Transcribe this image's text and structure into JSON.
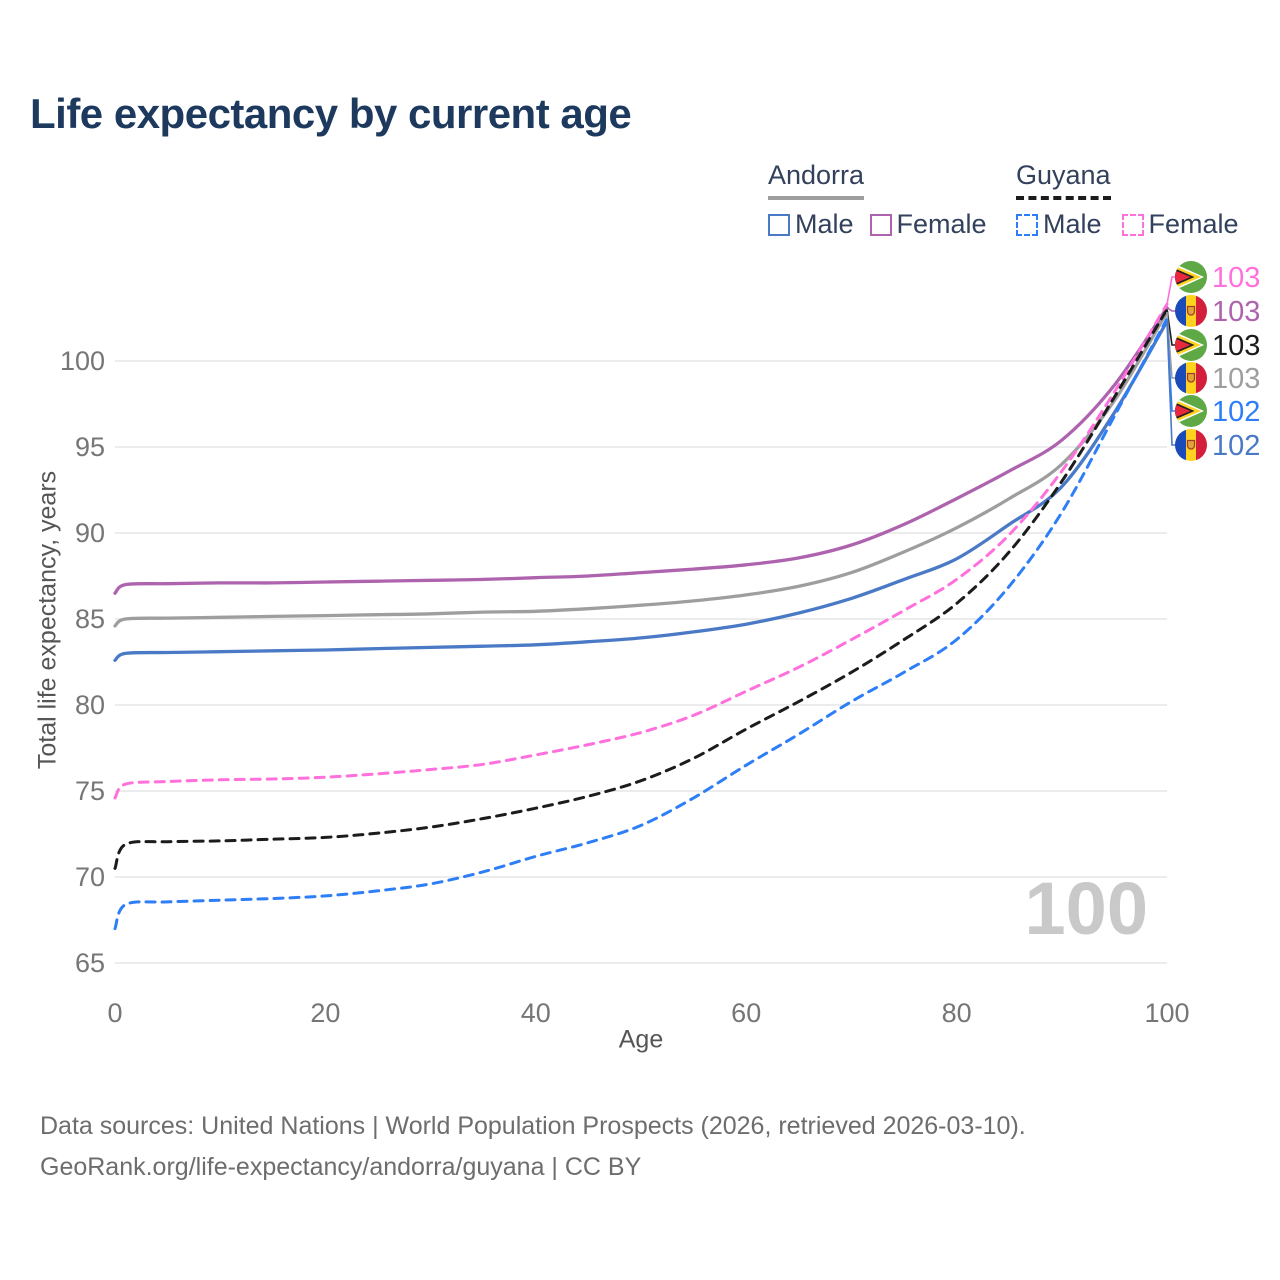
{
  "title": "Life expectancy by current age",
  "legend": {
    "groups": [
      {
        "country": "Andorra",
        "line_style": "solid",
        "line_color": "#9e9e9e",
        "items": [
          {
            "label": "Male",
            "swatch_color": "#4a79c5",
            "swatch_style": "solid"
          },
          {
            "label": "Female",
            "swatch_color": "#ae63ae",
            "swatch_style": "solid"
          }
        ]
      },
      {
        "country": "Guyana",
        "line_style": "dashed",
        "line_color": "#1c1c1c",
        "items": [
          {
            "label": "Male",
            "swatch_color": "#2e7ef7",
            "swatch_style": "dashed"
          },
          {
            "label": "Female",
            "swatch_color": "#ff70dd",
            "swatch_style": "dashed"
          }
        ]
      }
    ]
  },
  "axes": {
    "x_label": "Age",
    "y_label": "Total life expectancy, years"
  },
  "watermark": "100",
  "footer": {
    "line1": "Data sources: United Nations | World Population Prospects (2026, retrieved 2026-03-10).",
    "line2": "GeoRank.org/life-expectancy/andorra/guyana | CC BY"
  },
  "chart_data": {
    "type": "line",
    "title": "Life expectancy by current age",
    "xlabel": "Age",
    "ylabel": "Total life expectancy, years",
    "xlim": [
      0,
      100
    ],
    "ylim": [
      63.5,
      104.5
    ],
    "x_ticks": [
      0,
      20,
      40,
      60,
      80,
      100
    ],
    "y_ticks": [
      65,
      70,
      75,
      80,
      85,
      90,
      95,
      100
    ],
    "grid": "horizontal",
    "legend_position": "top-right",
    "ages": [
      0,
      1,
      5,
      10,
      15,
      20,
      25,
      30,
      35,
      40,
      45,
      50,
      55,
      60,
      65,
      70,
      75,
      80,
      85,
      90,
      95,
      100
    ],
    "series": [
      {
        "name": "Andorra Female",
        "country": "Andorra",
        "sex": "Female",
        "style": "solid",
        "color": "#ae63ae",
        "values": [
          86.5,
          87.0,
          87.05,
          87.1,
          87.1,
          87.15,
          87.2,
          87.25,
          87.3,
          87.4,
          87.5,
          87.7,
          87.9,
          88.15,
          88.55,
          89.3,
          90.5,
          92.0,
          93.6,
          95.4,
          98.6,
          103.1
        ]
      },
      {
        "name": "Andorra Both sexes",
        "country": "Andorra",
        "sex": "Both",
        "style": "solid",
        "color": "#9e9e9e",
        "values": [
          84.6,
          85.0,
          85.05,
          85.1,
          85.15,
          85.2,
          85.25,
          85.3,
          85.4,
          85.45,
          85.6,
          85.8,
          86.05,
          86.4,
          86.9,
          87.7,
          88.9,
          90.3,
          92.0,
          94.0,
          97.7,
          102.85
        ]
      },
      {
        "name": "Andorra Male",
        "country": "Andorra",
        "sex": "Male",
        "style": "solid",
        "color": "#4a79c5",
        "values": [
          82.6,
          83.0,
          83.05,
          83.1,
          83.15,
          83.2,
          83.28,
          83.35,
          83.42,
          83.5,
          83.68,
          83.9,
          84.25,
          84.7,
          85.35,
          86.2,
          87.3,
          88.5,
          90.5,
          92.7,
          97.0,
          102.3
        ]
      },
      {
        "name": "Guyana Female",
        "country": "Guyana",
        "sex": "Female",
        "style": "dashed",
        "color": "#ff70dd",
        "values": [
          74.6,
          75.4,
          75.55,
          75.65,
          75.7,
          75.8,
          76.0,
          76.25,
          76.55,
          77.1,
          77.7,
          78.4,
          79.4,
          80.8,
          82.2,
          83.8,
          85.5,
          87.3,
          89.9,
          93.6,
          98.2,
          103.3
        ]
      },
      {
        "name": "Guyana Both sexes",
        "country": "Guyana",
        "sex": "Both",
        "style": "dashed",
        "color": "#1c1c1c",
        "values": [
          70.5,
          71.9,
          72.05,
          72.1,
          72.2,
          72.3,
          72.55,
          72.9,
          73.4,
          74.0,
          74.7,
          75.6,
          76.9,
          78.6,
          80.2,
          81.9,
          83.8,
          85.9,
          88.9,
          93.0,
          97.9,
          103.0
        ]
      },
      {
        "name": "Guyana Male",
        "country": "Guyana",
        "sex": "Male",
        "style": "dashed",
        "color": "#2e7ef7",
        "values": [
          67.0,
          68.4,
          68.55,
          68.65,
          68.75,
          68.9,
          69.2,
          69.6,
          70.3,
          71.2,
          72.0,
          73.0,
          74.6,
          76.5,
          78.3,
          80.2,
          81.9,
          83.8,
          86.9,
          91.2,
          96.8,
          102.45
        ]
      }
    ],
    "end_labels": [
      {
        "series_index": 3,
        "series": "Guyana Female",
        "flag": "guyana",
        "value": "103"
      },
      {
        "series_index": 0,
        "series": "Andorra Female",
        "flag": "andorra",
        "value": "103"
      },
      {
        "series_index": 4,
        "series": "Guyana Both sexes",
        "flag": "guyana",
        "value": "103"
      },
      {
        "series_index": 1,
        "series": "Andorra Both sexes",
        "flag": "andorra",
        "value": "103"
      },
      {
        "series_index": 5,
        "series": "Guyana Male",
        "flag": "guyana",
        "value": "102"
      },
      {
        "series_index": 2,
        "series": "Andorra Male",
        "flag": "andorra",
        "value": "102"
      }
    ]
  }
}
